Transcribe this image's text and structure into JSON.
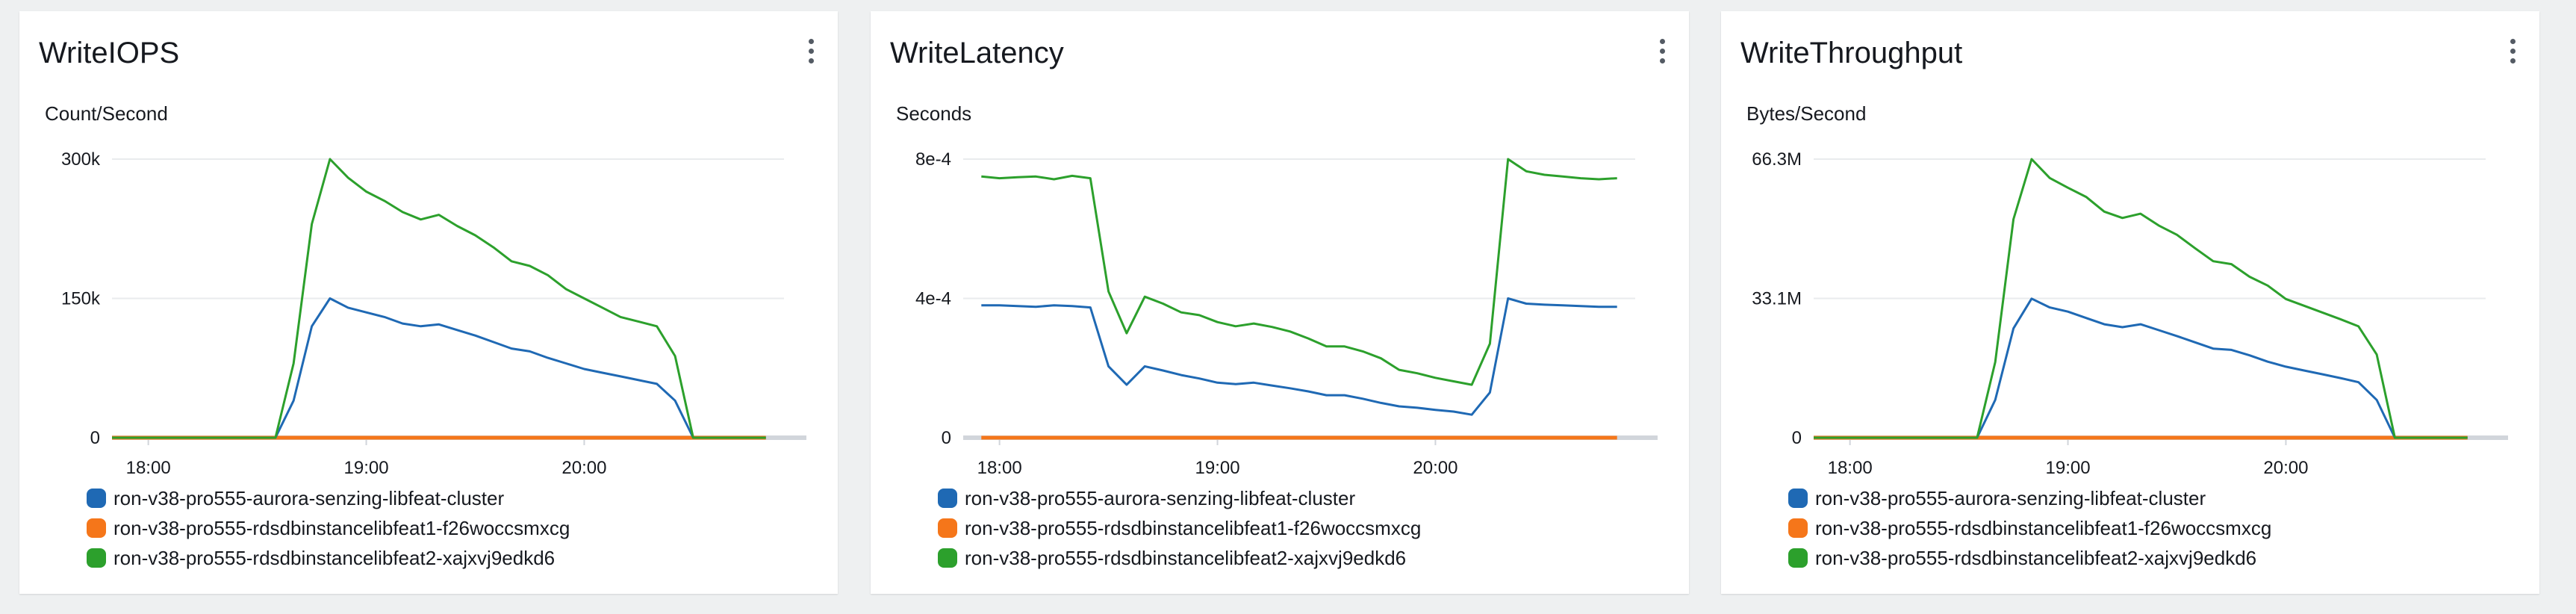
{
  "colors": {
    "series": [
      "#1f69b4",
      "#f5761a",
      "#2ca02c"
    ],
    "grid": "#e9ebed",
    "axis": "#d1d5db"
  },
  "icons": {
    "panel_menu": "vertical-ellipsis-icon"
  },
  "legend_labels": [
    "ron-v38-pro555-aurora-senzing-libfeat-cluster",
    "ron-v38-pro555-rdsdbinstancelibfeat1-f26woccsmxcg",
    "ron-v38-pro555-rdsdbinstancelibfeat2-xajxvj9edkd6"
  ],
  "chart_data": [
    {
      "type": "line",
      "title": "WriteIOPS",
      "ylabel": "Count/Second",
      "x_tick_labels": [
        "18:00",
        "19:00",
        "20:00"
      ],
      "y_tick_labels": [
        "0",
        "150k",
        "300k"
      ],
      "ylim": [
        0,
        300000
      ],
      "x": [
        "17:50",
        "17:55",
        "18:00",
        "18:05",
        "18:10",
        "18:15",
        "18:20",
        "18:25",
        "18:30",
        "18:35",
        "18:40",
        "18:45",
        "18:50",
        "18:55",
        "19:00",
        "19:05",
        "19:10",
        "19:15",
        "19:20",
        "19:25",
        "19:30",
        "19:35",
        "19:40",
        "19:45",
        "19:50",
        "19:55",
        "20:00",
        "20:05",
        "20:10",
        "20:15",
        "20:20",
        "20:25",
        "20:30",
        "20:35",
        "20:40",
        "20:45",
        "20:50"
      ],
      "series": [
        {
          "name": "ron-v38-pro555-aurora-senzing-libfeat-cluster",
          "values": [
            0,
            0,
            0,
            0,
            0,
            0,
            0,
            0,
            0,
            0,
            40000,
            120000,
            150000,
            140000,
            135000,
            130000,
            123000,
            120000,
            122000,
            116000,
            110000,
            103000,
            96000,
            93000,
            86000,
            80000,
            74000,
            70000,
            66000,
            62000,
            58000,
            40000,
            0,
            0,
            0,
            0,
            0
          ]
        },
        {
          "name": "ron-v38-pro555-rdsdbinstancelibfeat1-f26woccsmxcg",
          "values": [
            0,
            0,
            0,
            0,
            0,
            0,
            0,
            0,
            0,
            0,
            0,
            0,
            0,
            0,
            0,
            0,
            0,
            0,
            0,
            0,
            0,
            0,
            0,
            0,
            0,
            0,
            0,
            0,
            0,
            0,
            0,
            0,
            0,
            0,
            0,
            0,
            0
          ]
        },
        {
          "name": "ron-v38-pro555-rdsdbinstancelibfeat2-xajxvj9edkd6",
          "values": [
            0,
            0,
            0,
            0,
            0,
            0,
            0,
            0,
            0,
            0,
            80000,
            230000,
            300000,
            280000,
            265000,
            255000,
            243000,
            235000,
            240000,
            228000,
            218000,
            205000,
            190000,
            185000,
            175000,
            160000,
            150000,
            140000,
            130000,
            125000,
            120000,
            88000,
            0,
            0,
            0,
            0,
            0
          ]
        }
      ]
    },
    {
      "type": "line",
      "title": "WriteLatency",
      "ylabel": "Seconds",
      "x_tick_labels": [
        "18:00",
        "19:00",
        "20:00"
      ],
      "y_tick_labels": [
        "0",
        "4e-4",
        "8e-4"
      ],
      "ylim": [
        0,
        0.0008
      ],
      "x": [
        "17:55",
        "18:00",
        "18:05",
        "18:10",
        "18:15",
        "18:20",
        "18:25",
        "18:30",
        "18:35",
        "18:40",
        "18:45",
        "18:50",
        "18:55",
        "19:00",
        "19:05",
        "19:10",
        "19:15",
        "19:20",
        "19:25",
        "19:30",
        "19:35",
        "19:40",
        "19:45",
        "19:50",
        "19:55",
        "20:00",
        "20:05",
        "20:10",
        "20:15",
        "20:20",
        "20:25",
        "20:30",
        "20:35",
        "20:40",
        "20:45",
        "20:50"
      ],
      "series": [
        {
          "name": "ron-v38-pro555-aurora-senzing-libfeat-cluster",
          "values": [
            0.00038,
            0.00038,
            0.000378,
            0.000376,
            0.00038,
            0.000378,
            0.000374,
            0.000205,
            0.000152,
            0.000205,
            0.000193,
            0.00018,
            0.00017,
            0.000158,
            0.000154,
            0.000158,
            0.00015,
            0.000142,
            0.000133,
            0.000122,
            0.000122,
            0.000112,
            0.0001,
            9e-05,
            8.6e-05,
            8e-05,
            7.5e-05,
            6.6e-05,
            0.00013,
            0.0004,
            0.000385,
            0.000382,
            0.00038,
            0.000378,
            0.000376,
            0.000376
          ]
        },
        {
          "name": "ron-v38-pro555-rdsdbinstancelibfeat1-f26woccsmxcg",
          "values": [
            0,
            0,
            0,
            0,
            0,
            0,
            0,
            0,
            0,
            0,
            0,
            0,
            0,
            0,
            0,
            0,
            0,
            0,
            0,
            0,
            0,
            0,
            0,
            0,
            0,
            0,
            0,
            0,
            0,
            0,
            0,
            0,
            0,
            0,
            0,
            0
          ]
        },
        {
          "name": "ron-v38-pro555-rdsdbinstancelibfeat2-xajxvj9edkd6",
          "values": [
            0.00075,
            0.000745,
            0.000748,
            0.00075,
            0.000742,
            0.000752,
            0.000745,
            0.00042,
            0.0003,
            0.000405,
            0.000385,
            0.00036,
            0.000352,
            0.000332,
            0.00032,
            0.000328,
            0.000318,
            0.000305,
            0.000285,
            0.000262,
            0.000262,
            0.000248,
            0.000228,
            0.000195,
            0.000185,
            0.000172,
            0.000162,
            0.000152,
            0.00027,
            0.0008,
            0.000765,
            0.000755,
            0.00075,
            0.000745,
            0.000742,
            0.000745
          ]
        }
      ]
    },
    {
      "type": "line",
      "title": "WriteThroughput",
      "ylabel": "Bytes/Second",
      "x_tick_labels": [
        "18:00",
        "19:00",
        "20:00"
      ],
      "y_tick_labels": [
        "0",
        "33.1M",
        "66.3M"
      ],
      "ylim": [
        0,
        66300000
      ],
      "x": [
        "17:50",
        "17:55",
        "18:00",
        "18:05",
        "18:10",
        "18:15",
        "18:20",
        "18:25",
        "18:30",
        "18:35",
        "18:40",
        "18:45",
        "18:50",
        "18:55",
        "19:00",
        "19:05",
        "19:10",
        "19:15",
        "19:20",
        "19:25",
        "19:30",
        "19:35",
        "19:40",
        "19:45",
        "19:50",
        "19:55",
        "20:00",
        "20:05",
        "20:10",
        "20:15",
        "20:20",
        "20:25",
        "20:30",
        "20:35",
        "20:40",
        "20:45",
        "20:50"
      ],
      "series": [
        {
          "name": "ron-v38-pro555-aurora-senzing-libfeat-cluster",
          "values": [
            0,
            0,
            0,
            0,
            0,
            0,
            0,
            0,
            0,
            0,
            9000000,
            26000000,
            33100000,
            31000000,
            30000000,
            28500000,
            27000000,
            26300000,
            27000000,
            25600000,
            24200000,
            22700000,
            21200000,
            20900000,
            19600000,
            18100000,
            16900000,
            16000000,
            15100000,
            14200000,
            13200000,
            9000000,
            0,
            0,
            0,
            0,
            0
          ]
        },
        {
          "name": "ron-v38-pro555-rdsdbinstancelibfeat1-f26woccsmxcg",
          "values": [
            0,
            0,
            0,
            0,
            0,
            0,
            0,
            0,
            0,
            0,
            0,
            0,
            0,
            0,
            0,
            0,
            0,
            0,
            0,
            0,
            0,
            0,
            0,
            0,
            0,
            0,
            0,
            0,
            0,
            0,
            0,
            0,
            0,
            0,
            0,
            0,
            0
          ]
        },
        {
          "name": "ron-v38-pro555-rdsdbinstancelibfeat2-xajxvj9edkd6",
          "values": [
            0,
            0,
            0,
            0,
            0,
            0,
            0,
            0,
            0,
            0,
            18000000,
            52000000,
            66300000,
            61800000,
            59500000,
            57300000,
            53800000,
            52300000,
            53300000,
            50500000,
            48300000,
            45100000,
            42000000,
            41300000,
            38300000,
            36200000,
            33000000,
            31400000,
            29800000,
            28200000,
            26500000,
            19800000,
            0,
            0,
            0,
            0,
            0
          ]
        }
      ]
    }
  ]
}
